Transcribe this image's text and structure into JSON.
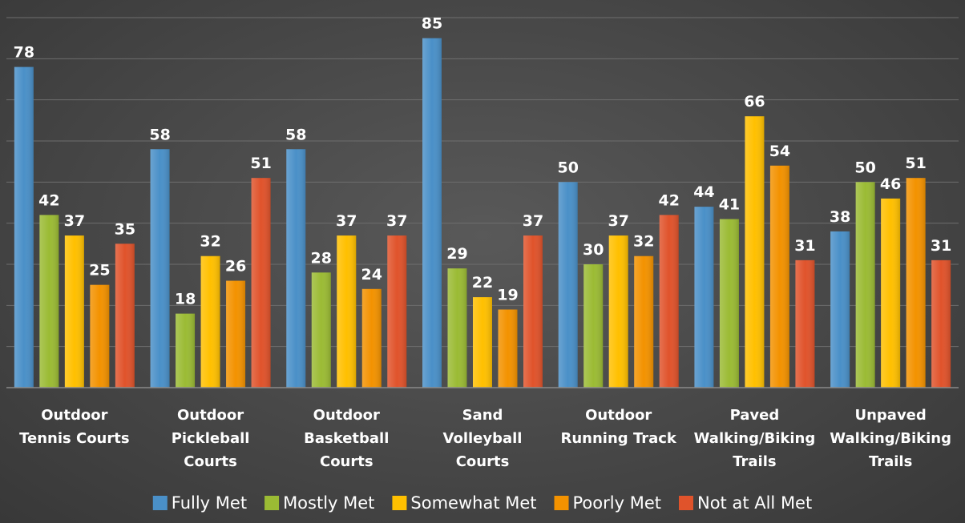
{
  "chart_data": {
    "type": "bar",
    "categories": [
      [
        "Outdoor",
        "Tennis Courts"
      ],
      [
        "Outdoor",
        "Pickleball",
        "Courts"
      ],
      [
        "Outdoor",
        "Basketball",
        "Courts"
      ],
      [
        "Sand",
        "Volleyball",
        "Courts"
      ],
      [
        "Outdoor",
        "Running Track"
      ],
      [
        "Paved",
        "Walking/Biking",
        "Trails"
      ],
      [
        "Unpaved",
        "Walking/Biking",
        "Trails"
      ]
    ],
    "series": [
      {
        "name": "Fully Met",
        "color": "#4a90c8",
        "values": [
          78,
          58,
          58,
          85,
          50,
          44,
          38
        ]
      },
      {
        "name": "Mostly Met",
        "color": "#9bbb34",
        "values": [
          42,
          18,
          28,
          29,
          30,
          41,
          50
        ]
      },
      {
        "name": "Somewhat Met",
        "color": "#ffc000",
        "values": [
          37,
          32,
          37,
          22,
          37,
          66,
          46
        ]
      },
      {
        "name": "Poorly Met",
        "color": "#f39200",
        "values": [
          25,
          26,
          24,
          19,
          32,
          54,
          51
        ]
      },
      {
        "name": "Not at All Met",
        "color": "#e0532b",
        "values": [
          35,
          51,
          37,
          37,
          42,
          31,
          31
        ]
      }
    ],
    "ylim": [
      0,
      90
    ],
    "grid": true,
    "legend": "bottom",
    "title": "",
    "xlabel": "",
    "ylabel": ""
  }
}
